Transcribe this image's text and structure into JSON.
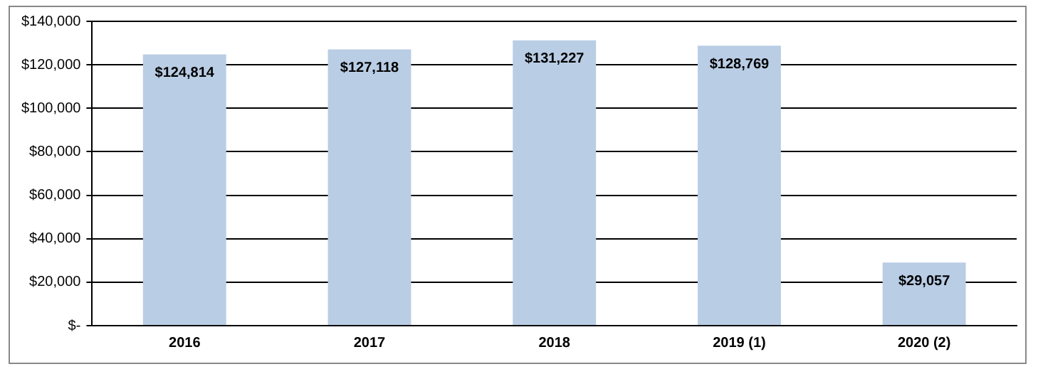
{
  "chart_data": {
    "type": "bar",
    "categories": [
      "2016",
      "2017",
      "2018",
      "2019 (1)",
      "2020 (2)"
    ],
    "values": [
      124814,
      127118,
      131227,
      128769,
      29057
    ],
    "value_labels": [
      "$124,814",
      "$127,118",
      "$131,227",
      "$128,769",
      "$29,057"
    ],
    "color": "#b9cde5",
    "ylim": [
      0,
      140000
    ],
    "yticks": [
      {
        "value": 0,
        "label": "$-"
      },
      {
        "value": 20000,
        "label": "$20,000"
      },
      {
        "value": 40000,
        "label": "$40,000"
      },
      {
        "value": 60000,
        "label": "$60,000"
      },
      {
        "value": 80000,
        "label": "$80,000"
      },
      {
        "value": 100000,
        "label": "$100,000"
      },
      {
        "value": 120000,
        "label": "$120,000"
      },
      {
        "value": 140000,
        "label": "$140,000"
      }
    ],
    "grid": "y",
    "legend": false
  }
}
